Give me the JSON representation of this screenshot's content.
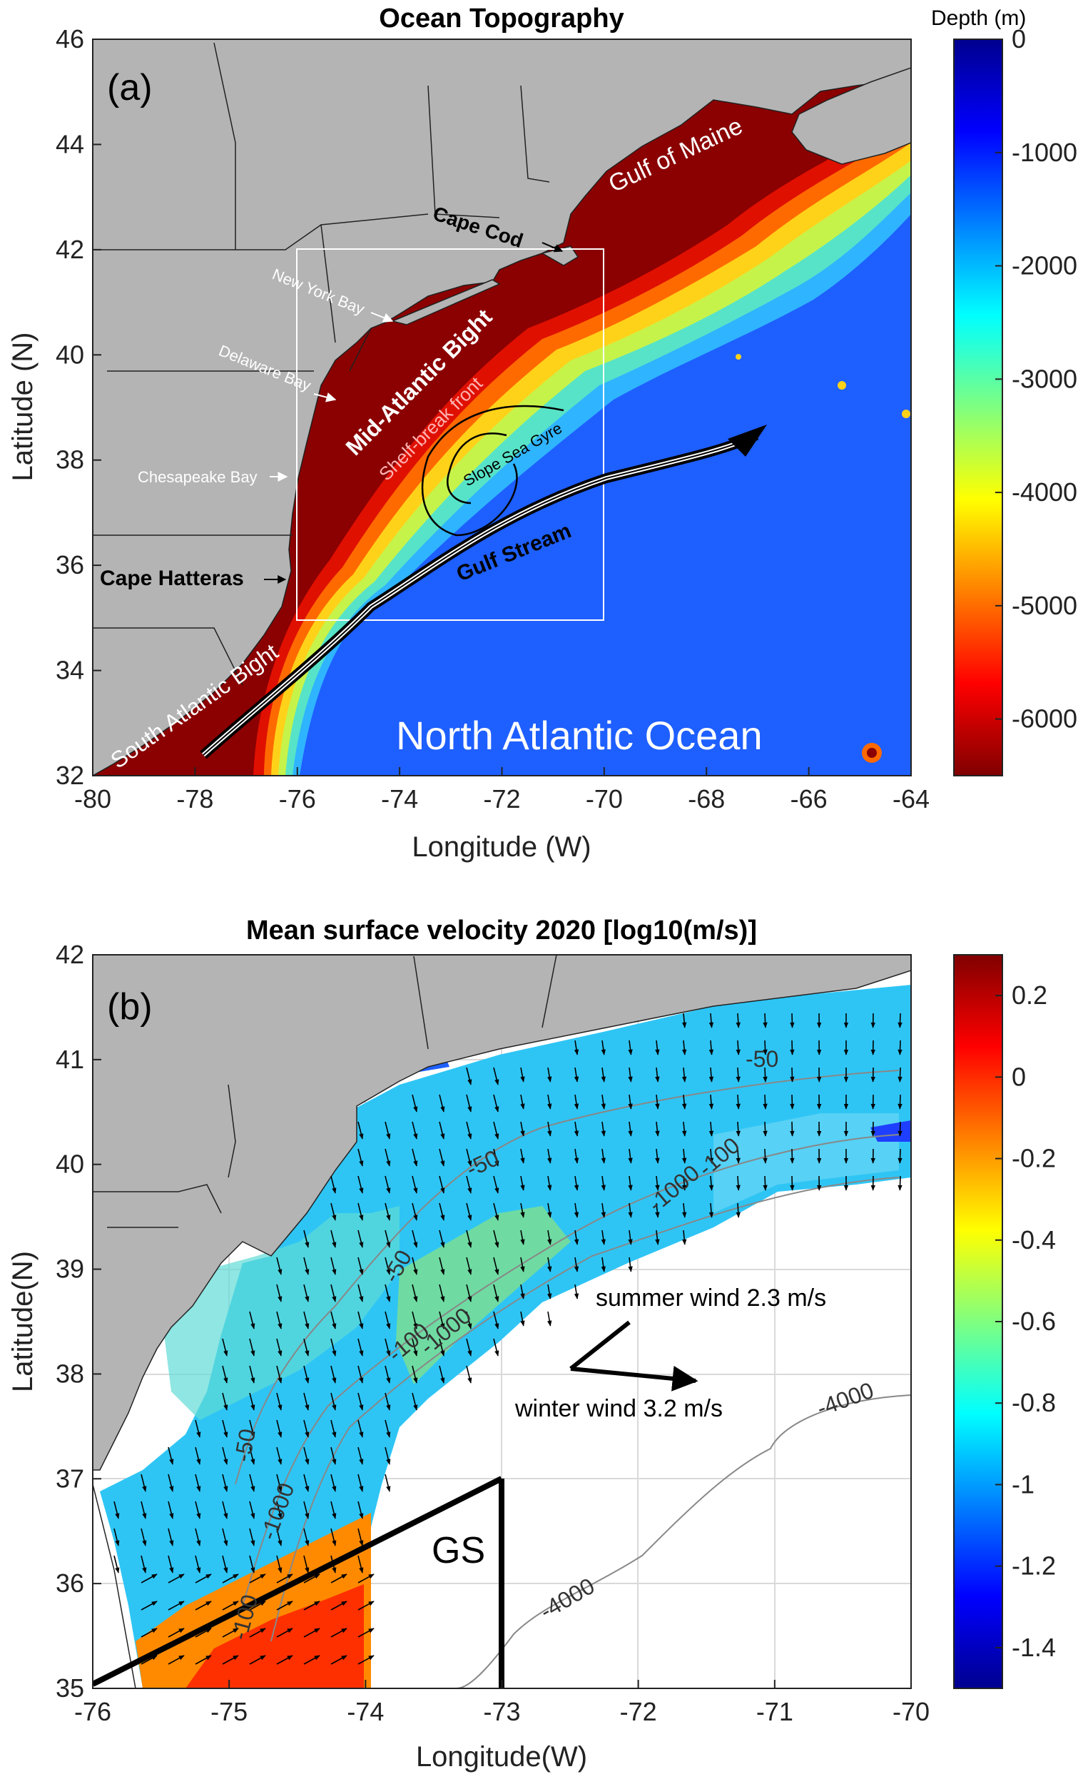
{
  "panel_a": {
    "title": "Ocean Topography",
    "panel_label": "(a)",
    "xlabel": "Longitude (W)",
    "ylabel": "Latitude (N)",
    "x_ticks": [
      "-80",
      "-78",
      "-76",
      "-74",
      "-72",
      "-70",
      "-68",
      "-66",
      "-64"
    ],
    "y_ticks": [
      "32",
      "34",
      "36",
      "38",
      "40",
      "42",
      "44",
      "46"
    ],
    "colorbar": {
      "label": "Depth (m)",
      "ticks": [
        "0",
        "-1000",
        "-2000",
        "-3000",
        "-4000",
        "-5000",
        "-6000"
      ],
      "range": [
        -6500,
        0
      ]
    },
    "labels": {
      "gulf_of_maine": "Gulf of Maine",
      "cape_cod": "Cape Cod",
      "new_york_bay": "New York Bay",
      "delaware_bay": "Delaware Bay",
      "mid_atlantic_bight": "Mid-Atlantic Bight",
      "shelf_break_front": "Shelf-break front",
      "slope_sea_gyre": "Slope Sea Gyre",
      "chesapeake_bay": "Chesapeake Bay",
      "cape_hatteras": "Cape Hatteras",
      "gulf_stream": "Gulf Stream",
      "south_atlantic_bight": "South Atlantic Bight",
      "north_atlantic_ocean": "North Atlantic Ocean"
    }
  },
  "panel_b": {
    "title": "Mean surface velocity 2020 [log10(m/s)]",
    "panel_label": "(b)",
    "xlabel": "Longitude(W)",
    "ylabel": "Latitude(N)",
    "x_ticks": [
      "-76",
      "-75",
      "-74",
      "-73",
      "-72",
      "-71",
      "-70"
    ],
    "y_ticks": [
      "35",
      "36",
      "37",
      "38",
      "39",
      "40",
      "41",
      "42"
    ],
    "colorbar": {
      "ticks": [
        "0.2",
        "0",
        "-0.2",
        "-0.4",
        "-0.6",
        "-0.8",
        "-1",
        "-1.2",
        "-1.4"
      ],
      "range": [
        -1.5,
        0.3
      ]
    },
    "contour_labels": [
      "-50",
      "-50",
      "-50",
      "-50",
      "-100",
      "-100",
      "-100",
      "-1000",
      "-1000",
      "-1000",
      "-4000",
      "-4000"
    ],
    "summer_wind": "summer wind 2.3 m/s",
    "winter_wind": "winter wind 3.2 m/s",
    "gs_label": "GS"
  },
  "colors": {
    "land": "#b4b4b4",
    "shelf": "#8b0000",
    "arrow": "#000000"
  }
}
